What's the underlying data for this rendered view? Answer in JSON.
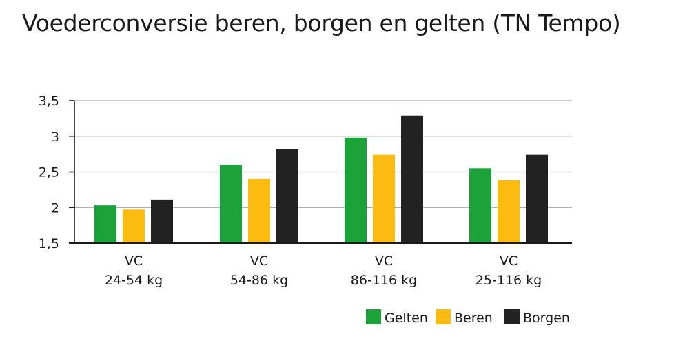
{
  "chart_data": {
    "type": "bar",
    "title": "Voederconversie beren, borgen en gelten (TN Tempo)",
    "xlabel": "",
    "ylabel": "",
    "ylim": [
      1.5,
      3.5
    ],
    "yticks": [
      "3,5",
      "3",
      "2,5",
      "2",
      "1,5"
    ],
    "ytick_values": [
      3.5,
      3.0,
      2.5,
      2.0,
      1.5
    ],
    "grid": true,
    "legend_position": "bottom-right",
    "categories": [
      {
        "line1": "VC",
        "line2": "24-54 kg"
      },
      {
        "line1": "VC",
        "line2": "54-86 kg"
      },
      {
        "line1": "VC",
        "line2": "86-116 kg"
      },
      {
        "line1": "VC",
        "line2": "25-116 kg"
      }
    ],
    "series": [
      {
        "name": "Gelten",
        "color": "#1ba33a",
        "values": [
          2.03,
          2.6,
          2.98,
          2.55
        ]
      },
      {
        "name": "Beren",
        "color": "#fbbb10",
        "values": [
          1.97,
          2.4,
          2.74,
          2.38
        ]
      },
      {
        "name": "Borgen",
        "color": "#222222",
        "values": [
          2.11,
          2.82,
          3.29,
          2.74
        ]
      }
    ]
  }
}
